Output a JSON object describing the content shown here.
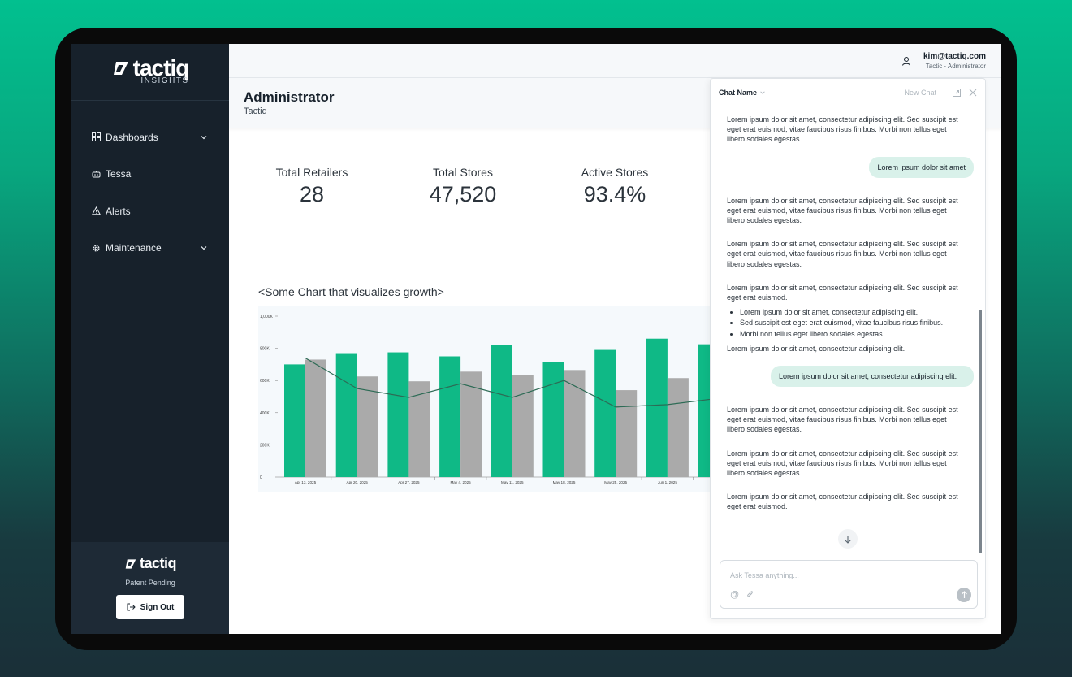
{
  "brand": {
    "name": "tactiq",
    "sub": "INSIGHTS",
    "patent": "Patent Pending"
  },
  "sidebar": {
    "items": [
      {
        "label": "Dashboards",
        "icon": "grid-icon",
        "expandable": true
      },
      {
        "label": "Tessa",
        "icon": "bot-icon",
        "expandable": false
      },
      {
        "label": "Alerts",
        "icon": "warning-icon",
        "expandable": false
      },
      {
        "label": "Maintenance",
        "icon": "gear-icon",
        "expandable": true
      }
    ],
    "sign_out": "Sign Out"
  },
  "user": {
    "email": "kim@tactiq.com",
    "role": "Tactic - Administrator"
  },
  "header": {
    "title": "Administrator",
    "subtitle": "Tactiq"
  },
  "kpis": [
    {
      "label": "Total Retailers",
      "value": "28"
    },
    {
      "label": "Total Stores",
      "value": "47,520"
    },
    {
      "label": "Active Stores",
      "value": "93.4%"
    }
  ],
  "chart_title": "<Some Chart that visualizes growth>",
  "colors": {
    "accent": "#0fb986",
    "bar_secondary": "#aaaaaa",
    "line": "#2d6b55",
    "sidebar": "#17212b"
  },
  "chart_data": {
    "type": "bar",
    "categories": [
      "Apr 13, 2025",
      "Apr 20, 2025",
      "Apr 27, 2025",
      "May 4, 2025",
      "May 11, 2025",
      "May 18, 2025",
      "May 25, 2025",
      "Jun 1, 2025",
      ""
    ],
    "series": [
      {
        "values": [
          700,
          770,
          775,
          750,
          820,
          715,
          790,
          860,
          825
        ]
      },
      {
        "values": [
          730,
          625,
          595,
          655,
          635,
          665,
          540,
          615,
          null
        ]
      },
      {
        "type": "line",
        "values": [
          740,
          550,
          495,
          580,
          495,
          600,
          435,
          450,
          490
        ]
      }
    ],
    "yticks": [
      "0",
      "200K",
      "400K",
      "600K",
      "800K",
      "1,000K"
    ],
    "ylim": [
      0,
      1000
    ],
    "title": "<Some Chart that visualizes growth>"
  },
  "chat": {
    "name": "Chat Name",
    "new_chat": "New Chat",
    "placeholder": "Ask Tessa anything...",
    "msg1": "Lorem ipsum dolor sit amet, consectetur adipiscing elit. Sed suscipit est eget erat euismod, vitae faucibus risus finibus. Morbi non tellus eget libero sodales egestas.",
    "user1": "Lorem ipsum dolor sit amet",
    "msg2": "Lorem ipsum dolor sit amet, consectetur adipiscing elit. Sed suscipit est eget erat euismod, vitae faucibus risus finibus. Morbi non tellus eget libero sodales egestas.",
    "msg3": "Lorem ipsum dolor sit amet, consectetur adipiscing elit. Sed suscipit est eget erat euismod, vitae faucibus risus finibus. Morbi non tellus eget libero sodales egestas.",
    "msg4_intro": "Lorem ipsum dolor sit amet, consectetur adipiscing elit. Sed suscipit est eget erat euismod.",
    "msg4_bullets": [
      "Lorem ipsum dolor sit amet, consectetur adipiscing elit.",
      "Sed suscipit est eget erat euismod, vitae faucibus risus finibus.",
      "Morbi non tellus eget libero sodales egestas."
    ],
    "msg4_outro": "Lorem ipsum dolor sit amet, consectetur adipiscing elit.",
    "user2": "Lorem ipsum dolor sit amet, consectetur adipiscing elit.",
    "msg5": "Lorem ipsum dolor sit amet, consectetur adipiscing elit. Sed suscipit est eget erat euismod, vitae faucibus risus finibus. Morbi non tellus eget libero sodales egestas.",
    "msg6": "Lorem ipsum dolor sit amet, consectetur adipiscing elit. Sed suscipit est eget erat euismod, vitae faucibus risus finibus. Morbi non tellus eget libero sodales egestas.",
    "msg7": "Lorem ipsum dolor sit amet, consectetur adipiscing elit. Sed suscipit est eget erat euismod."
  }
}
